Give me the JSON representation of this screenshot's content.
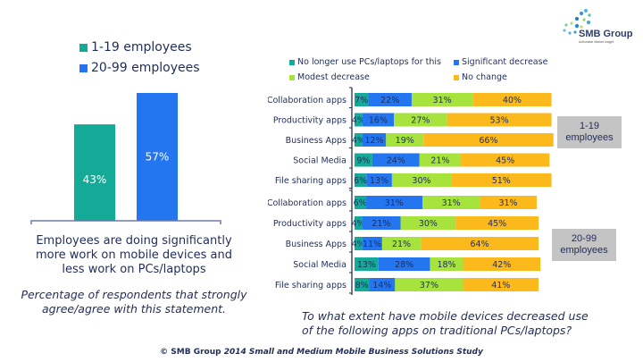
{
  "logo": {
    "name": "SMB Group",
    "tagline": "Actionable Market Insight"
  },
  "left_panel": {
    "legend": [
      {
        "label": "1-19 employees",
        "color": "#13ab98"
      },
      {
        "label": "20-99 employees",
        "color": "#2476f0"
      }
    ],
    "statement_lines": [
      "Employees are doing significantly",
      "more work on mobile devices and",
      "less work on PCs/laptops"
    ],
    "subtitle_lines": [
      "Percentage of respondents that strongly",
      "agree/agree with this statement."
    ]
  },
  "right_panel": {
    "legend": [
      {
        "label": "No longer use PCs/laptops for this",
        "color": "#13ab98"
      },
      {
        "label": "Significant decrease",
        "color": "#2476f0"
      },
      {
        "label": "Modest decrease",
        "color": "#a6e33c"
      },
      {
        "label": "No change",
        "color": "#fbb91c"
      }
    ],
    "group_labels": [
      {
        "line1": "1-19",
        "line2": "employees"
      },
      {
        "line1": "20-99",
        "line2": "employees"
      }
    ],
    "question_lines": [
      "To what extent have mobile devices decreased use",
      "of the following apps on traditional PCs/laptops?"
    ]
  },
  "footer": {
    "prefix": "© SMB Group ",
    "title": "2014 Small and Medium Mobile Business Solutions Study"
  },
  "chart_data": [
    {
      "type": "bar",
      "title": "Employees are doing significantly more work on mobile devices and less work on PCs/laptops",
      "subtitle": "Percentage of respondents that strongly agree/agree with this statement.",
      "categories": [
        "1-19 employees",
        "20-99 employees"
      ],
      "values": [
        43,
        57
      ],
      "value_labels": [
        "43%",
        "57%"
      ],
      "colors": [
        "#13ab98",
        "#2476f0"
      ],
      "xlabel": "",
      "ylabel": "",
      "ylim": [
        0,
        80
      ],
      "grid": false,
      "legend": "top"
    },
    {
      "type": "bar",
      "orientation": "horizontal-stacked",
      "title": "To what extent have mobile devices decreased use of the following apps on traditional PCs/laptops?",
      "series_names": [
        "No longer use PCs/laptops for this",
        "Significant decrease",
        "Modest decrease",
        "No change"
      ],
      "series_colors": [
        "#13ab98",
        "#2476f0",
        "#a6e33c",
        "#fbb91c"
      ],
      "legend": "top",
      "groups": [
        {
          "name": "1-19 employees",
          "categories": [
            "Collaboration  apps",
            "Productivity apps",
            "Business Apps",
            "Social Media",
            "File sharing apps"
          ],
          "series": [
            {
              "name": "No longer use PCs/laptops for this",
              "values": [
                7,
                4,
                4,
                9,
                6
              ]
            },
            {
              "name": "Significant decrease",
              "values": [
                22,
                16,
                12,
                24,
                13
              ]
            },
            {
              "name": "Modest decrease",
              "values": [
                31,
                27,
                19,
                21,
                30
              ]
            },
            {
              "name": "No change",
              "values": [
                40,
                53,
                66,
                45,
                51
              ]
            }
          ]
        },
        {
          "name": "20-99 employees",
          "categories": [
            "Collaboration  apps",
            "Productivity apps",
            "Business Apps",
            "Social Media",
            "File sharing apps"
          ],
          "series": [
            {
              "name": "No longer use PCs/laptops for this",
              "values": [
                6,
                4,
                4,
                13,
                8
              ]
            },
            {
              "name": "Significant decrease",
              "values": [
                31,
                21,
                11,
                28,
                14
              ]
            },
            {
              "name": "Modest decrease",
              "values": [
                31,
                30,
                21,
                18,
                37
              ]
            },
            {
              "name": "No change",
              "values": [
                31,
                45,
                64,
                42,
                41
              ]
            }
          ]
        }
      ]
    }
  ]
}
